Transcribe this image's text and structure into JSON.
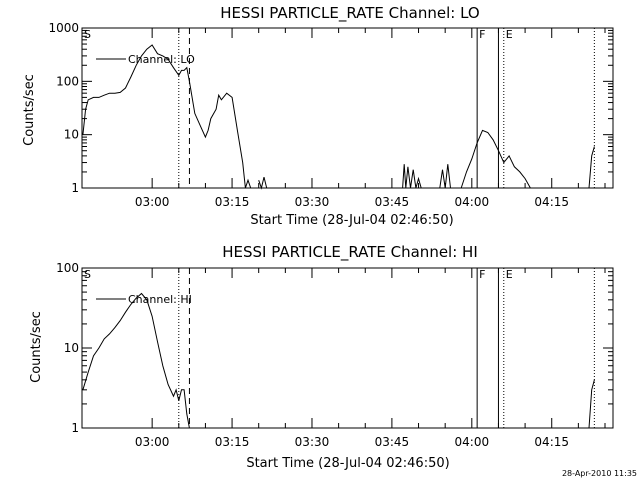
{
  "chart_data": [
    {
      "type": "line",
      "title": "HESSI PARTICLE_RATE Channel: LO",
      "xlabel": "Start Time (28-Jul-04 02:46:50)",
      "ylabel": "Counts/sec",
      "y_scale": "log",
      "ylim": [
        1,
        1000
      ],
      "y_tick_labels": [
        "1",
        "10",
        "100",
        "1000"
      ],
      "x_tick_labels": [
        "03:00",
        "03:15",
        "03:30",
        "03:45",
        "04:00",
        "04:15"
      ],
      "legend": {
        "text": "Channel: LO",
        "placement": "top-left"
      },
      "markers": [
        {
          "time": "02:46:50",
          "style": "solid",
          "label": "S"
        },
        {
          "time": "03:05",
          "style": "dotted",
          "label": ""
        },
        {
          "time": "03:07",
          "style": "dashed",
          "label": ""
        },
        {
          "time": "04:01",
          "style": "solid",
          "label": "F"
        },
        {
          "time": "04:05",
          "style": "solid",
          "label": ""
        },
        {
          "time": "04:06",
          "style": "dotted",
          "label": "E"
        },
        {
          "time": "04:23",
          "style": "dotted",
          "label": ""
        }
      ],
      "series": [
        {
          "segments": [
            [
              [
                "02:47",
                10
              ],
              [
                "02:47.5",
                30
              ],
              [
                "02:48",
                45
              ],
              [
                "02:49",
                50
              ],
              [
                "02:50",
                50
              ],
              [
                "02:51",
                55
              ],
              [
                "02:52",
                60
              ],
              [
                "02:53",
                60
              ],
              [
                "02:54",
                62
              ],
              [
                "02:55",
                75
              ],
              [
                "02:56",
                120
              ],
              [
                "02:57",
                200
              ],
              [
                "02:58",
                300
              ],
              [
                "02:59",
                400
              ],
              [
                "03:00",
                480
              ],
              [
                "03:01",
                330
              ],
              [
                "03:02",
                300
              ],
              [
                "03:03",
                260
              ],
              [
                "03:04",
                180
              ],
              [
                "03:05",
                130
              ],
              [
                "03:05.5",
                160
              ],
              [
                "03:06",
                160
              ],
              [
                "03:06.5",
                180
              ],
              [
                "03:07",
                100
              ],
              [
                "03:08",
                25
              ],
              [
                "03:09",
                15
              ],
              [
                "03:10",
                9
              ],
              [
                "03:10.5",
                12
              ],
              [
                "03:11",
                20
              ],
              [
                "03:12",
                30
              ],
              [
                "03:12.5",
                55
              ],
              [
                "03:13",
                45
              ],
              [
                "03:14",
                60
              ],
              [
                "03:15",
                50
              ],
              [
                "03:16",
                12
              ],
              [
                "03:17",
                3
              ],
              [
                "03:17.5",
                1
              ],
              [
                "03:18",
                1.4
              ],
              [
                "03:18.5",
                1
              ],
              [
                "03:19",
                1
              ]
            ],
            [
              [
                "03:20",
                1.4
              ],
              [
                "03:20.5",
                1
              ],
              [
                "03:21",
                1.6
              ],
              [
                "03:21.5",
                1
              ]
            ],
            [
              [
                "03:47",
                1
              ],
              [
                "03:47.3",
                2.8
              ],
              [
                "03:47.6",
                1
              ],
              [
                "03:48",
                2.5
              ],
              [
                "03:48.5",
                1
              ],
              [
                "03:49",
                2.2
              ],
              [
                "03:49.5",
                1
              ],
              [
                "03:50",
                1.5
              ],
              [
                "03:50.5",
                1
              ]
            ],
            [
              [
                "03:54",
                1
              ],
              [
                "03:54.5",
                2.2
              ],
              [
                "03:55",
                1
              ],
              [
                "03:55.5",
                2.8
              ],
              [
                "03:56",
                1
              ]
            ],
            [
              [
                "03:58",
                1
              ],
              [
                "03:59",
                2
              ],
              [
                "04:00",
                3.5
              ],
              [
                "04:01",
                7
              ],
              [
                "04:02",
                12
              ],
              [
                "04:03",
                11
              ],
              [
                "04:04",
                8
              ],
              [
                "04:05",
                5
              ],
              [
                "04:06",
                3
              ],
              [
                "04:07",
                4
              ],
              [
                "04:08",
                2.5
              ],
              [
                "04:09",
                2
              ],
              [
                "04:10",
                1.5
              ],
              [
                "04:11",
                1
              ]
            ],
            [
              [
                "04:22",
                1
              ],
              [
                "04:22.5",
                4
              ],
              [
                "04:23",
                6
              ]
            ]
          ]
        }
      ]
    },
    {
      "type": "line",
      "title": "HESSI PARTICLE_RATE Channel: HI",
      "xlabel": "Start Time (28-Jul-04 02:46:50)",
      "ylabel": "Counts/sec",
      "y_scale": "log",
      "ylim": [
        1,
        100
      ],
      "y_tick_labels": [
        "1",
        "10",
        "100"
      ],
      "x_tick_labels": [
        "03:00",
        "03:15",
        "03:30",
        "03:45",
        "04:00",
        "04:15"
      ],
      "legend": {
        "text": "Channel: HI",
        "placement": "top-left"
      },
      "markers": [
        {
          "time": "02:46:50",
          "style": "solid",
          "label": "S"
        },
        {
          "time": "03:05",
          "style": "dotted",
          "label": ""
        },
        {
          "time": "03:07",
          "style": "dashed",
          "label": ""
        },
        {
          "time": "04:01",
          "style": "solid",
          "label": "F"
        },
        {
          "time": "04:05",
          "style": "solid",
          "label": ""
        },
        {
          "time": "04:06",
          "style": "dotted",
          "label": "E"
        },
        {
          "time": "04:23",
          "style": "dotted",
          "label": ""
        }
      ],
      "series": [
        {
          "segments": [
            [
              [
                "02:47",
                3
              ],
              [
                "02:48",
                5
              ],
              [
                "02:49",
                8
              ],
              [
                "02:50",
                10
              ],
              [
                "02:51",
                13
              ],
              [
                "02:52",
                15
              ],
              [
                "02:53",
                18
              ],
              [
                "02:54",
                22
              ],
              [
                "02:55",
                28
              ],
              [
                "02:56",
                35
              ],
              [
                "02:57",
                42
              ],
              [
                "02:58",
                48
              ],
              [
                "02:59",
                40
              ],
              [
                "03:00",
                25
              ],
              [
                "03:01",
                12
              ],
              [
                "03:02",
                6
              ],
              [
                "03:03",
                3.5
              ],
              [
                "03:04",
                2.5
              ],
              [
                "03:04.5",
                3
              ],
              [
                "03:05",
                2.2
              ],
              [
                "03:05.5",
                3
              ],
              [
                "03:06",
                3
              ],
              [
                "03:06.5",
                1.5
              ],
              [
                "03:07",
                1
              ]
            ],
            [
              [
                "04:22",
                1
              ],
              [
                "04:22.5",
                3
              ],
              [
                "04:23",
                4
              ]
            ]
          ]
        }
      ]
    }
  ],
  "footer_timestamp": "28-Apr-2010 11:35"
}
